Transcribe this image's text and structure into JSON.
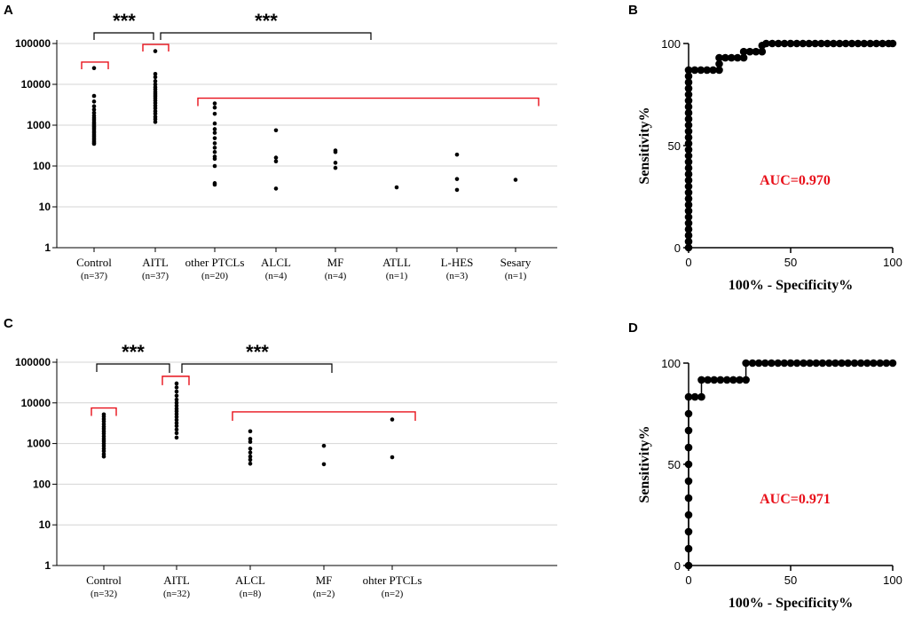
{
  "colors": {
    "red": "#e8101a",
    "grid": "#d4d4d4",
    "black": "#000000"
  },
  "chart_data": [
    {
      "panel": "A",
      "type": "scatter",
      "yscale": "log",
      "ylim": [
        1,
        100000
      ],
      "yticks": [
        "1",
        "10",
        "100",
        "1000",
        "10000",
        "100000"
      ],
      "categories": [
        {
          "name": "Control",
          "n": "(n=37)",
          "values": [
            25000,
            5200,
            3800,
            2900,
            2400,
            2000,
            1700,
            1500,
            1350,
            1200,
            1100,
            1000,
            920,
            850,
            780,
            700,
            640,
            580,
            530,
            480,
            440,
            400,
            370,
            350
          ]
        },
        {
          "name": "AITL",
          "n": "(n=37)",
          "values": [
            65000,
            18000,
            15000,
            12000,
            10000,
            8500,
            7500,
            6500,
            5800,
            5200,
            4600,
            4000,
            3500,
            3000,
            2600,
            2200,
            1900,
            1600,
            1400,
            1200
          ]
        },
        {
          "name": "other PTCLs",
          "n": "(n=20)",
          "values": [
            3400,
            2700,
            1900,
            1100,
            800,
            650,
            480,
            360,
            280,
            220,
            170,
            150,
            100,
            38,
            35
          ]
        },
        {
          "name": "ALCL",
          "n": "(n=4)",
          "values": [
            750,
            160,
            130,
            28
          ]
        },
        {
          "name": "MF",
          "n": "(n=4)",
          "values": [
            240,
            220,
            120,
            90
          ]
        },
        {
          "name": "ATLL",
          "n": "(n=1)",
          "values": [
            30
          ]
        },
        {
          "name": "L-HES",
          "n": "(n=3)",
          "values": [
            190,
            48,
            26
          ]
        },
        {
          "name": "Sesary",
          "n": "(n=1)",
          "values": [
            46
          ]
        }
      ],
      "annotations": [
        {
          "text": "***"
        },
        {
          "text": "***"
        }
      ]
    },
    {
      "panel": "B",
      "type": "line",
      "xlabel": "100% - Specificity%",
      "ylabel": "Sensitivity%",
      "xlim": [
        0,
        100
      ],
      "ylim": [
        0,
        100
      ],
      "xticks": [
        "0",
        "50",
        "100"
      ],
      "yticks": [
        "0",
        "50",
        "100"
      ],
      "auc": "AUC=0.970",
      "points": [
        [
          0,
          0
        ],
        [
          0,
          3
        ],
        [
          0,
          6
        ],
        [
          0,
          9
        ],
        [
          0,
          12
        ],
        [
          0,
          15
        ],
        [
          0,
          18
        ],
        [
          0,
          21
        ],
        [
          0,
          24
        ],
        [
          0,
          27
        ],
        [
          0,
          30
        ],
        [
          0,
          33
        ],
        [
          0,
          36
        ],
        [
          0,
          39
        ],
        [
          0,
          42
        ],
        [
          0,
          45
        ],
        [
          0,
          48
        ],
        [
          0,
          51
        ],
        [
          0,
          54
        ],
        [
          0,
          57
        ],
        [
          0,
          60
        ],
        [
          0,
          63
        ],
        [
          0,
          66
        ],
        [
          0,
          69
        ],
        [
          0,
          72
        ],
        [
          0,
          75
        ],
        [
          0,
          78
        ],
        [
          0,
          81
        ],
        [
          0,
          84
        ],
        [
          0,
          87
        ],
        [
          3,
          87
        ],
        [
          6,
          87
        ],
        [
          9,
          87
        ],
        [
          12,
          87
        ],
        [
          15,
          87
        ],
        [
          15,
          90
        ],
        [
          15,
          93
        ],
        [
          18,
          93
        ],
        [
          21,
          93
        ],
        [
          24,
          93
        ],
        [
          27,
          93
        ],
        [
          27,
          96
        ],
        [
          30,
          96
        ],
        [
          33,
          96
        ],
        [
          36,
          96
        ],
        [
          36,
          99
        ],
        [
          38,
          100
        ],
        [
          41,
          100
        ],
        [
          44,
          100
        ],
        [
          47,
          100
        ],
        [
          50,
          100
        ],
        [
          53,
          100
        ],
        [
          56,
          100
        ],
        [
          59,
          100
        ],
        [
          62,
          100
        ],
        [
          65,
          100
        ],
        [
          68,
          100
        ],
        [
          71,
          100
        ],
        [
          74,
          100
        ],
        [
          77,
          100
        ],
        [
          80,
          100
        ],
        [
          83,
          100
        ],
        [
          86,
          100
        ],
        [
          89,
          100
        ],
        [
          92,
          100
        ],
        [
          95,
          100
        ],
        [
          98,
          100
        ],
        [
          100,
          100
        ]
      ]
    },
    {
      "panel": "C",
      "type": "scatter",
      "yscale": "log",
      "ylim": [
        1,
        100000
      ],
      "yticks": [
        "1",
        "10",
        "100",
        "1000",
        "10000",
        "100000"
      ],
      "categories": [
        {
          "name": "Control",
          "n": "(n=32)",
          "values": [
            5200,
            4600,
            4000,
            3500,
            3000,
            2600,
            2300,
            2000,
            1750,
            1500,
            1300,
            1150,
            1000,
            870,
            750,
            650,
            550,
            480
          ]
        },
        {
          "name": "AITL",
          "n": "(n=32)",
          "values": [
            30000,
            24000,
            19000,
            15000,
            12000,
            10000,
            8500,
            7200,
            6200,
            5300,
            4500,
            3800,
            3200,
            2700,
            2200,
            1800,
            1400
          ]
        },
        {
          "name": "ALCL",
          "n": "(n=8)",
          "values": [
            2000,
            1300,
            1100,
            750,
            600,
            480,
            400,
            320
          ]
        },
        {
          "name": "MF",
          "n": "(n=2)",
          "values": [
            880,
            310
          ]
        },
        {
          "name": "ohter PTCLs",
          "n": "(n=2)",
          "values": [
            3900,
            460
          ]
        }
      ],
      "annotations": [
        {
          "text": "***"
        },
        {
          "text": "***"
        }
      ]
    },
    {
      "panel": "D",
      "type": "line",
      "xlabel": "100% - Specificity%",
      "ylabel": "Sensitivity%",
      "xlim": [
        0,
        100
      ],
      "ylim": [
        0,
        100
      ],
      "xticks": [
        "0",
        "50",
        "100"
      ],
      "yticks": [
        "0",
        "50",
        "100"
      ],
      "auc": "AUC=0.971",
      "points": [
        [
          0,
          0
        ],
        [
          0,
          8.3
        ],
        [
          0,
          16.7
        ],
        [
          0,
          25
        ],
        [
          0,
          33.3
        ],
        [
          0,
          41.7
        ],
        [
          0,
          50
        ],
        [
          0,
          58.3
        ],
        [
          0,
          66.7
        ],
        [
          0,
          75
        ],
        [
          0,
          83.3
        ],
        [
          3.1,
          83.3
        ],
        [
          6.3,
          83.3
        ],
        [
          6.3,
          91.7
        ],
        [
          9.4,
          91.7
        ],
        [
          12.5,
          91.7
        ],
        [
          15.6,
          91.7
        ],
        [
          18.8,
          91.7
        ],
        [
          21.9,
          91.7
        ],
        [
          25,
          91.7
        ],
        [
          28.1,
          91.7
        ],
        [
          28.1,
          100
        ],
        [
          31.3,
          100
        ],
        [
          34.4,
          100
        ],
        [
          37.5,
          100
        ],
        [
          40.6,
          100
        ],
        [
          43.8,
          100
        ],
        [
          46.9,
          100
        ],
        [
          50,
          100
        ],
        [
          53.1,
          100
        ],
        [
          56.3,
          100
        ],
        [
          59.4,
          100
        ],
        [
          62.5,
          100
        ],
        [
          65.6,
          100
        ],
        [
          68.8,
          100
        ],
        [
          71.9,
          100
        ],
        [
          75,
          100
        ],
        [
          78.1,
          100
        ],
        [
          81.3,
          100
        ],
        [
          84.4,
          100
        ],
        [
          87.5,
          100
        ],
        [
          90.6,
          100
        ],
        [
          93.8,
          100
        ],
        [
          96.9,
          100
        ],
        [
          100,
          100
        ]
      ]
    }
  ]
}
